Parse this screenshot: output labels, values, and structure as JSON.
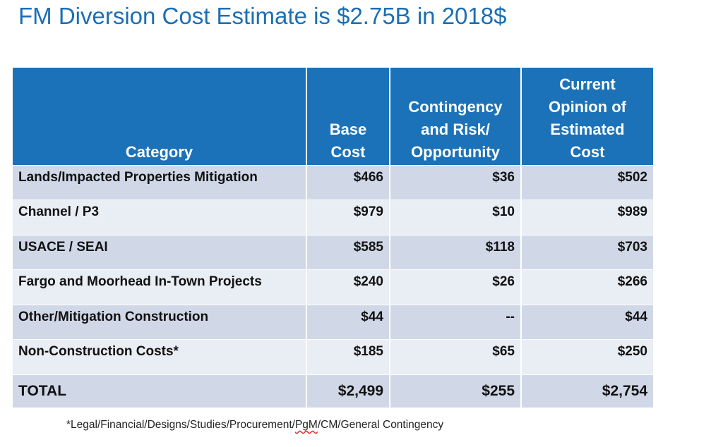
{
  "title": "FM Diversion Cost Estimate is $2.75B in 2018$",
  "table": {
    "headers": [
      "Category",
      "Base Cost",
      "Contingency and Risk/ Opportunity",
      "Current Opinion of Estimated Cost"
    ],
    "header_lines": [
      [
        "Category"
      ],
      [
        "Base",
        "Cost"
      ],
      [
        "Contingency",
        "and Risk/",
        "Opportunity"
      ],
      [
        "Current",
        "Opinion of",
        "Estimated",
        "Cost"
      ]
    ],
    "rows": [
      {
        "category": "Lands/Impacted Properties Mitigation",
        "base": "$466",
        "contingency": "$36",
        "estimate": "$502"
      },
      {
        "category": "Channel / P3",
        "base": "$979",
        "contingency": "$10",
        "estimate": "$989"
      },
      {
        "category": "USACE / SEAI",
        "base": "$585",
        "contingency": "$118",
        "estimate": "$703"
      },
      {
        "category": "Fargo and Moorhead In-Town Projects",
        "base": "$240",
        "contingency": "$26",
        "estimate": "$266"
      },
      {
        "category": "Other/Mitigation Construction",
        "base": "$44",
        "contingency": "--",
        "estimate": "$44"
      },
      {
        "category": "Non-Construction Costs*",
        "base": "$185",
        "contingency": "$65",
        "estimate": "$250"
      }
    ],
    "total": {
      "category": "TOTAL",
      "base": "$2,499",
      "contingency": "$255",
      "estimate": "$2,754"
    }
  },
  "footnote": {
    "before": "*Legal/Financial/Designs/Studies/Procurement/",
    "flagged": "PgM",
    "after": "/CM/General Contingency"
  },
  "colors": {
    "title": "#1a6fb5",
    "header_bg": "#1c72b8",
    "row_dark": "#d0d8e7",
    "row_light": "#e9edf4"
  }
}
